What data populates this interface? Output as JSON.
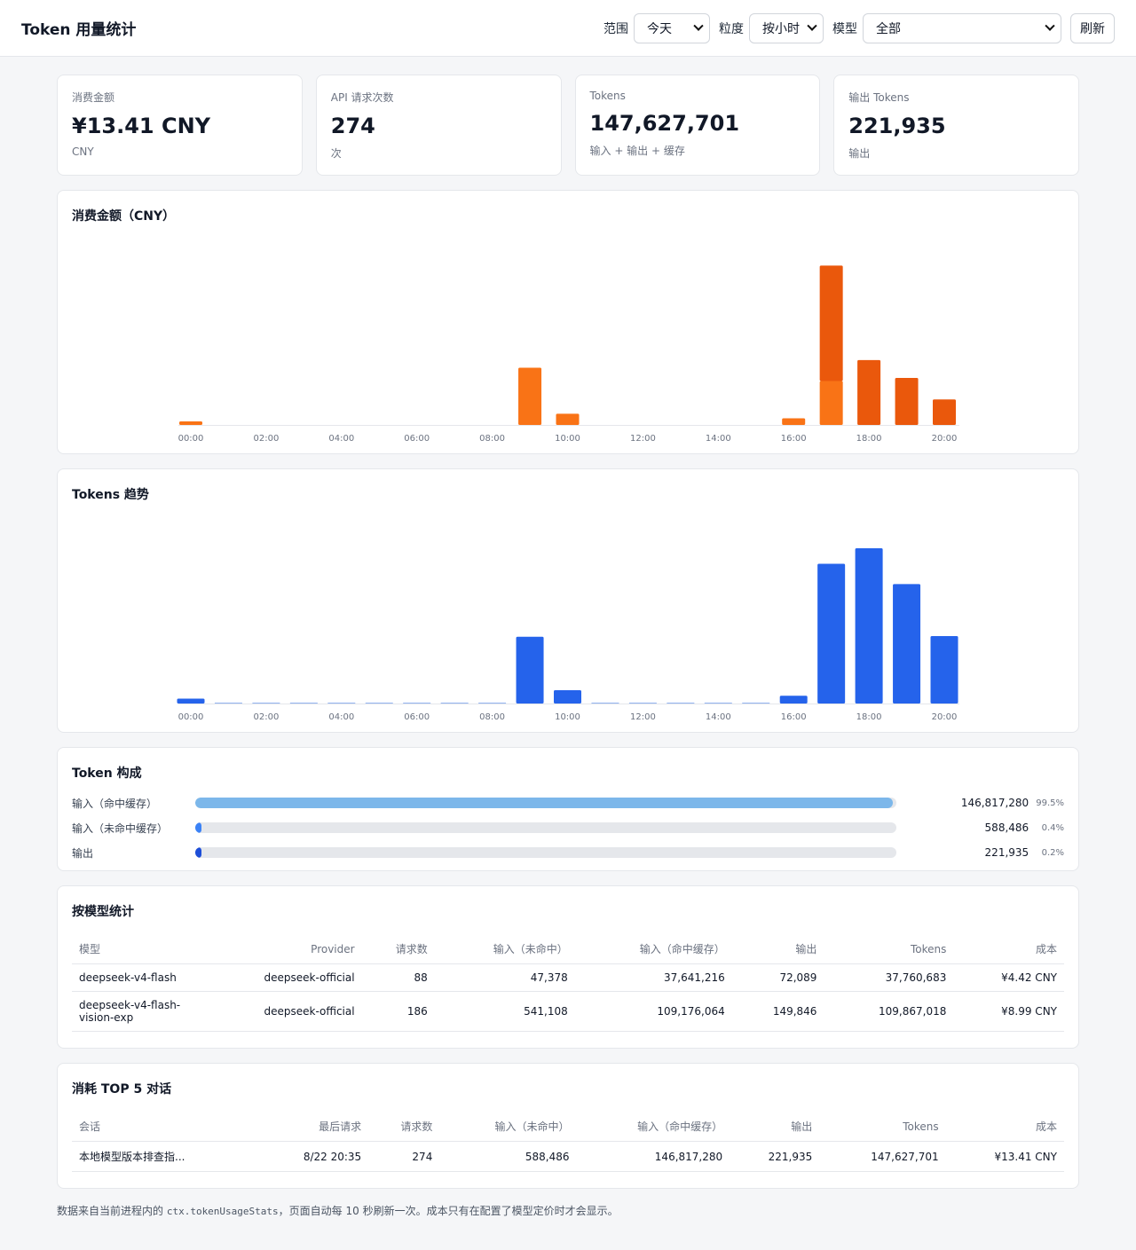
{
  "header": {
    "title": "Token 用量统计",
    "range_label": "范围",
    "range_value": "今天",
    "granularity_label": "粒度",
    "granularity_value": "按小时",
    "model_label": "模型",
    "model_value": "全部",
    "refresh_label": "刷新"
  },
  "stats": [
    {
      "title": "消费金额",
      "value": "¥13.41 CNY",
      "sub": "CNY"
    },
    {
      "title": "API 请求次数",
      "value": "274",
      "sub": "次"
    },
    {
      "title": "Tokens",
      "value": "147,627,701",
      "sub": "输入 + 输出 + 缓存"
    },
    {
      "title": "输出 Tokens",
      "value": "221,935",
      "sub": "输出"
    }
  ],
  "cost_chart": {
    "title": "消费金额（CNY）",
    "chart_data": {
      "type": "bar",
      "categories": [
        "00:00",
        "01:00",
        "02:00",
        "03:00",
        "04:00",
        "05:00",
        "06:00",
        "07:00",
        "08:00",
        "09:00",
        "10:00",
        "11:00",
        "12:00",
        "13:00",
        "14:00",
        "15:00",
        "16:00",
        "17:00",
        "18:00",
        "19:00",
        "20:00"
      ],
      "tick_labels": [
        "00:00",
        "02:00",
        "04:00",
        "06:00",
        "08:00",
        "10:00",
        "12:00",
        "14:00",
        "16:00",
        "18:00",
        "20:00"
      ],
      "series": [
        {
          "color": "#f97316",
          "values": [
            0.07,
            0,
            0,
            0,
            0,
            0,
            0,
            0,
            0,
            1.12,
            0.22,
            0,
            0,
            0,
            0,
            0,
            0.13,
            0.86,
            0,
            0,
            0
          ]
        },
        {
          "color": "#ea580c",
          "values": [
            0,
            0,
            0,
            0,
            0,
            0,
            0,
            0,
            0,
            0,
            0,
            0,
            0,
            0,
            0,
            0,
            0,
            2.26,
            1.27,
            0.92,
            0.5
          ]
        }
      ],
      "ylim": [
        0,
        3.3
      ]
    }
  },
  "token_chart": {
    "title": "Tokens 趋势",
    "chart_data": {
      "type": "bar",
      "categories": [
        "00:00",
        "01:00",
        "02:00",
        "03:00",
        "04:00",
        "05:00",
        "06:00",
        "07:00",
        "08:00",
        "09:00",
        "10:00",
        "11:00",
        "12:00",
        "13:00",
        "14:00",
        "15:00",
        "16:00",
        "17:00",
        "18:00",
        "19:00",
        "20:00"
      ],
      "tick_labels": [
        "00:00",
        "02:00",
        "04:00",
        "06:00",
        "08:00",
        "10:00",
        "12:00",
        "14:00",
        "16:00",
        "18:00",
        "20:00"
      ],
      "series": [
        {
          "color": "#2563eb",
          "values": [
            0.7,
            0,
            0,
            0,
            0,
            0,
            0,
            0,
            0,
            9.5,
            1.9,
            0,
            0,
            0,
            0,
            0,
            1.1,
            19.9,
            22.1,
            17.0,
            9.6
          ]
        }
      ],
      "ylim": [
        0,
        24
      ]
    }
  },
  "composition": {
    "title": "Token 构成",
    "rows": [
      {
        "name": "输入（命中缓存）",
        "value": "146,817,280",
        "pct": "99.5%",
        "fraction": 0.995,
        "color": "#7cb7ea"
      },
      {
        "name": "输入（未命中缓存）",
        "value": "588,486",
        "pct": "0.4%",
        "fraction": 0.004,
        "color": "#3b82f6"
      },
      {
        "name": "输出",
        "value": "221,935",
        "pct": "0.2%",
        "fraction": 0.002,
        "color": "#1d4ed8"
      }
    ]
  },
  "by_model": {
    "title": "按模型统计",
    "columns": [
      "模型",
      "Provider",
      "请求数",
      "输入（未命中）",
      "输入（命中缓存）",
      "输出",
      "Tokens",
      "成本"
    ],
    "rows": [
      [
        "deepseek-v4-flash",
        "deepseek-official",
        "88",
        "47,378",
        "37,641,216",
        "72,089",
        "37,760,683",
        "¥4.42 CNY"
      ],
      [
        "deepseek-v4-flash-vision-exp",
        "deepseek-official",
        "186",
        "541,108",
        "109,176,064",
        "149,846",
        "109,867,018",
        "¥8.99 CNY"
      ]
    ]
  },
  "top_sessions": {
    "title": "消耗 TOP 5 对话",
    "columns": [
      "会话",
      "最后请求",
      "请求数",
      "输入（未命中）",
      "输入（命中缓存）",
      "输出",
      "Tokens",
      "成本"
    ],
    "rows": [
      [
        "本地模型版本排查指...",
        "8/22 20:35",
        "274",
        "588,486",
        "146,817,280",
        "221,935",
        "147,627,701",
        "¥13.41 CNY"
      ]
    ]
  },
  "footer": {
    "prefix": "数据来自当前进程内的 ",
    "code": "ctx.tokenUsageStats",
    "suffix": "，页面自动每 10 秒刷新一次。成本只有在配置了模型定价时才会显示。"
  }
}
